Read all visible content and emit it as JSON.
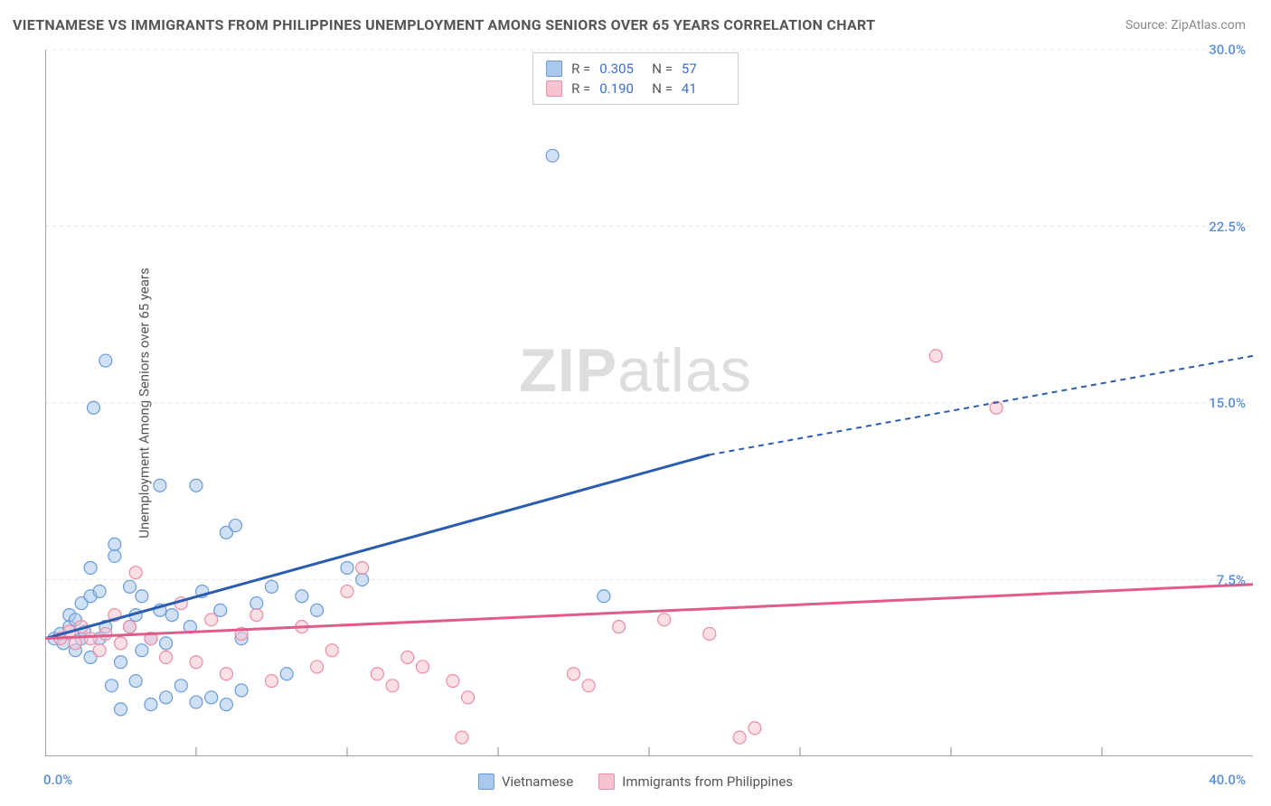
{
  "title": "VIETNAMESE VS IMMIGRANTS FROM PHILIPPINES UNEMPLOYMENT AMONG SENIORS OVER 65 YEARS CORRELATION CHART",
  "source": "Source: ZipAtlas.com",
  "y_axis_label": "Unemployment Among Seniors over 65 years",
  "watermark_bold": "ZIP",
  "watermark_rest": "atlas",
  "chart": {
    "type": "scatter_with_regression",
    "xlim": [
      0,
      40
    ],
    "ylim": [
      0,
      30
    ],
    "x_origin_label": "0.0%",
    "x_max_label": "40.0%",
    "y_ticks": [
      7.5,
      15.0,
      22.5,
      30.0
    ],
    "y_tick_labels": [
      "7.5%",
      "15.0%",
      "22.5%",
      "30.0%"
    ],
    "grid_color": "#e5e5e5",
    "axis_color": "#888888",
    "background_color": "#ffffff",
    "marker_radius": 7,
    "marker_opacity": 0.55,
    "series": [
      {
        "name": "Vietnamese",
        "fill": "#a9c8ec",
        "stroke": "#6a9bd8",
        "line_color": "#2a5db0",
        "points": [
          [
            0.3,
            5.0
          ],
          [
            0.5,
            5.2
          ],
          [
            0.6,
            4.8
          ],
          [
            0.8,
            5.5
          ],
          [
            0.8,
            6.0
          ],
          [
            1.0,
            4.5
          ],
          [
            1.0,
            5.8
          ],
          [
            1.2,
            5.0
          ],
          [
            1.2,
            6.5
          ],
          [
            1.3,
            5.3
          ],
          [
            1.5,
            6.8
          ],
          [
            1.5,
            4.2
          ],
          [
            1.5,
            8.0
          ],
          [
            1.6,
            14.8
          ],
          [
            1.8,
            5.0
          ],
          [
            1.8,
            7.0
          ],
          [
            2.0,
            16.8
          ],
          [
            2.0,
            5.5
          ],
          [
            2.2,
            3.0
          ],
          [
            2.3,
            8.5
          ],
          [
            2.3,
            9.0
          ],
          [
            2.5,
            4.0
          ],
          [
            2.5,
            2.0
          ],
          [
            2.8,
            7.2
          ],
          [
            2.8,
            5.5
          ],
          [
            3.0,
            6.0
          ],
          [
            3.0,
            3.2
          ],
          [
            3.2,
            4.5
          ],
          [
            3.2,
            6.8
          ],
          [
            3.5,
            2.2
          ],
          [
            3.5,
            5.0
          ],
          [
            3.8,
            11.5
          ],
          [
            3.8,
            6.2
          ],
          [
            4.0,
            4.8
          ],
          [
            4.0,
            2.5
          ],
          [
            4.2,
            6.0
          ],
          [
            4.5,
            3.0
          ],
          [
            4.8,
            5.5
          ],
          [
            5.0,
            2.3
          ],
          [
            5.0,
            11.5
          ],
          [
            5.2,
            7.0
          ],
          [
            5.5,
            2.5
          ],
          [
            5.8,
            6.2
          ],
          [
            6.0,
            9.5
          ],
          [
            6.0,
            2.2
          ],
          [
            6.3,
            9.8
          ],
          [
            6.5,
            5.0
          ],
          [
            6.5,
            2.8
          ],
          [
            7.0,
            6.5
          ],
          [
            7.5,
            7.2
          ],
          [
            8.0,
            3.5
          ],
          [
            8.5,
            6.8
          ],
          [
            9.0,
            6.2
          ],
          [
            10.0,
            8.0
          ],
          [
            10.5,
            7.5
          ],
          [
            16.8,
            25.5
          ],
          [
            18.5,
            6.8
          ]
        ],
        "regression": {
          "x1": 0,
          "y1": 5.0,
          "x2": 22,
          "y2": 12.8,
          "x3": 40,
          "y3": 17.0
        }
      },
      {
        "name": "Immigrants from Philippines",
        "fill": "#f5c4d0",
        "stroke": "#e88da5",
        "line_color": "#e05a8a",
        "points": [
          [
            0.5,
            5.0
          ],
          [
            0.8,
            5.3
          ],
          [
            1.0,
            4.8
          ],
          [
            1.2,
            5.5
          ],
          [
            1.5,
            5.0
          ],
          [
            1.8,
            4.5
          ],
          [
            2.0,
            5.2
          ],
          [
            2.3,
            6.0
          ],
          [
            2.5,
            4.8
          ],
          [
            2.8,
            5.5
          ],
          [
            3.0,
            7.8
          ],
          [
            3.5,
            5.0
          ],
          [
            4.0,
            4.2
          ],
          [
            4.5,
            6.5
          ],
          [
            5.0,
            4.0
          ],
          [
            5.5,
            5.8
          ],
          [
            6.0,
            3.5
          ],
          [
            6.5,
            5.2
          ],
          [
            7.0,
            6.0
          ],
          [
            7.5,
            3.2
          ],
          [
            8.5,
            5.5
          ],
          [
            9.0,
            3.8
          ],
          [
            9.5,
            4.5
          ],
          [
            10.0,
            7.0
          ],
          [
            10.5,
            8.0
          ],
          [
            11.0,
            3.5
          ],
          [
            11.5,
            3.0
          ],
          [
            12.0,
            4.2
          ],
          [
            12.5,
            3.8
          ],
          [
            13.5,
            3.2
          ],
          [
            13.8,
            0.8
          ],
          [
            14.0,
            2.5
          ],
          [
            17.5,
            3.5
          ],
          [
            18.0,
            3.0
          ],
          [
            19.0,
            5.5
          ],
          [
            20.5,
            5.8
          ],
          [
            22.0,
            5.2
          ],
          [
            23.0,
            0.8
          ],
          [
            23.5,
            1.2
          ],
          [
            29.5,
            17.0
          ],
          [
            31.5,
            14.8
          ]
        ],
        "regression": {
          "x1": 0,
          "y1": 5.0,
          "x2": 40,
          "y2": 7.3
        }
      }
    ]
  },
  "top_legend": {
    "rows": [
      {
        "swatch_fill": "#a9c8ec",
        "swatch_stroke": "#6a9bd8",
        "r_label": "R =",
        "r_value": "0.305",
        "n_label": "N =",
        "n_value": "57"
      },
      {
        "swatch_fill": "#f5c4d0",
        "swatch_stroke": "#e88da5",
        "r_label": "R =",
        "r_value": "0.190",
        "n_label": "N =",
        "n_value": "41"
      }
    ]
  },
  "bottom_legend": {
    "items": [
      {
        "swatch_fill": "#a9c8ec",
        "swatch_stroke": "#6a9bd8",
        "label": "Vietnamese"
      },
      {
        "swatch_fill": "#f5c4d0",
        "swatch_stroke": "#e88da5",
        "label": "Immigrants from Philippines"
      }
    ]
  }
}
